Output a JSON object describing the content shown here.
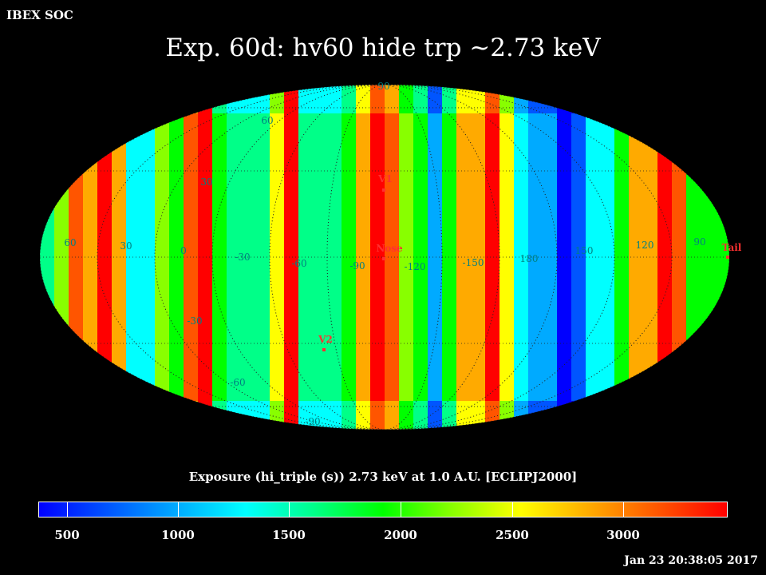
{
  "header": {
    "org": "IBEX SOC",
    "title": "Exp.   60d: hv60 hide trp ~2.73 keV"
  },
  "map": {
    "lat_labels": [
      {
        "text": "90"
      },
      {
        "text": "60"
      },
      {
        "text": "30"
      },
      {
        "text": "0"
      },
      {
        "text": "-30"
      },
      {
        "text": "-60"
      },
      {
        "text": "-90"
      }
    ],
    "lon_labels": [
      "60",
      "30",
      "0",
      "-30",
      "-60",
      "-90",
      "-120",
      "-150",
      "180",
      "150",
      "120",
      "90"
    ],
    "markers": [
      {
        "text": "V1",
        "color": "#ff3030"
      },
      {
        "text": "Nose",
        "color": "#ff3030"
      },
      {
        "text": "V2",
        "color": "#ff3030"
      },
      {
        "text": "Tail",
        "color": "#ff3030"
      }
    ],
    "label_color": "#008080"
  },
  "caption": "Exposure (hi_triple (s))  2.73 keV at 1.0 A.U. [ECLIPJ2000]",
  "colorbar": {
    "ticks": [
      "500",
      "1000",
      "1500",
      "2000",
      "2500",
      "3000"
    ],
    "colors": [
      "#0000ff",
      "#0055ff",
      "#00aaff",
      "#00ffff",
      "#00ff88",
      "#00ff00",
      "#88ff00",
      "#ffff00",
      "#ffaa00",
      "#ff5500",
      "#ff0000"
    ]
  },
  "timestamp": "Jan 23 20:38:05 2017"
}
